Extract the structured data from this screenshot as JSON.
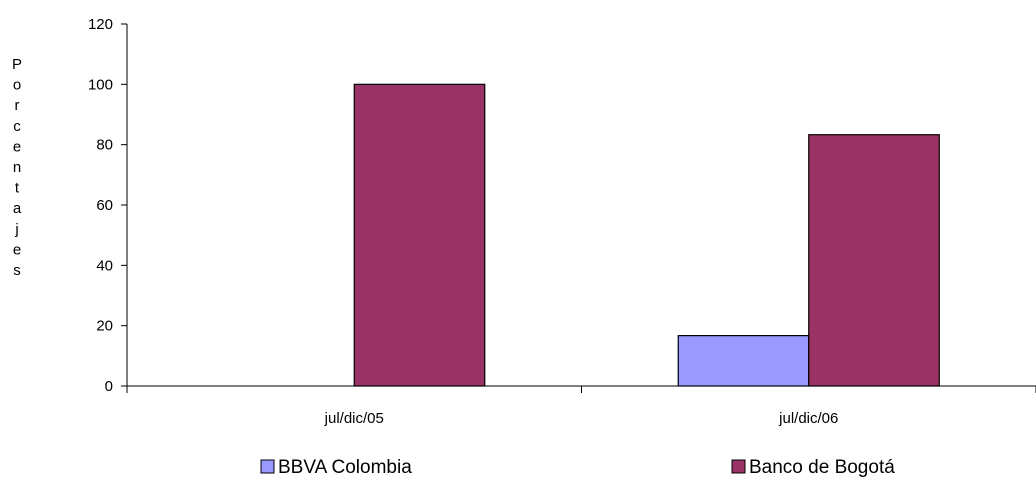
{
  "chart_data": {
    "type": "bar",
    "categories": [
      "jul/dic/05",
      "jul/dic/06"
    ],
    "series": [
      {
        "name": "BBVA Colombia",
        "values": [
          0,
          16.7
        ],
        "color": "#9999FF"
      },
      {
        "name": "Banco de Bogotá",
        "values": [
          100,
          83.3
        ],
        "color": "#993366"
      }
    ],
    "title": "",
    "xlabel": "",
    "ylabel": "Porcentajes",
    "ylim": [
      0,
      120
    ],
    "yticks": [
      0,
      20,
      40,
      60,
      80,
      100,
      120
    ],
    "grid": false,
    "legend_position": "bottom"
  }
}
